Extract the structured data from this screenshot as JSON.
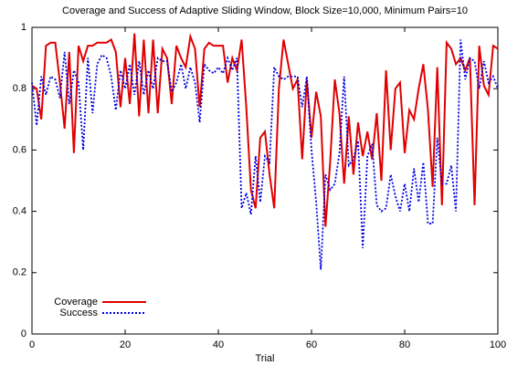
{
  "chart_data": {
    "type": "line",
    "title": "Coverage and Success of Adaptive Sliding Window, Block Size=10,000, Minimum Pairs=10",
    "xlabel": "Trial",
    "x": [
      0,
      1,
      2,
      3,
      4,
      5,
      6,
      7,
      8,
      9,
      10,
      11,
      12,
      13,
      14,
      15,
      16,
      17,
      18,
      19,
      20,
      21,
      22,
      23,
      24,
      25,
      26,
      27,
      28,
      29,
      30,
      31,
      32,
      33,
      34,
      35,
      36,
      37,
      38,
      39,
      40,
      41,
      42,
      43,
      44,
      45,
      46,
      47,
      48,
      49,
      50,
      51,
      52,
      53,
      54,
      55,
      56,
      57,
      58,
      59,
      60,
      61,
      62,
      63,
      64,
      65,
      66,
      67,
      68,
      69,
      70,
      71,
      72,
      73,
      74,
      75,
      76,
      77,
      78,
      79,
      80,
      81,
      82,
      83,
      84,
      85,
      86,
      87,
      88,
      89,
      90,
      91,
      92,
      93,
      94,
      95,
      96,
      97,
      98,
      99,
      100
    ],
    "series": [
      {
        "name": "Coverage",
        "color": "#e00000",
        "dash": "solid",
        "values": [
          0.81,
          0.8,
          0.7,
          0.94,
          0.95,
          0.95,
          0.82,
          0.67,
          0.92,
          0.59,
          0.94,
          0.89,
          0.94,
          0.94,
          0.95,
          0.95,
          0.95,
          0.96,
          0.92,
          0.74,
          0.9,
          0.75,
          0.98,
          0.71,
          0.96,
          0.72,
          0.96,
          0.72,
          0.93,
          0.9,
          0.75,
          0.94,
          0.9,
          0.87,
          0.97,
          0.93,
          0.74,
          0.93,
          0.95,
          0.94,
          0.94,
          0.94,
          0.82,
          0.9,
          0.86,
          0.96,
          0.74,
          0.47,
          0.41,
          0.64,
          0.66,
          0.52,
          0.41,
          0.8,
          0.96,
          0.88,
          0.8,
          0.83,
          0.57,
          0.83,
          0.64,
          0.79,
          0.71,
          0.35,
          0.56,
          0.83,
          0.72,
          0.49,
          0.71,
          0.52,
          0.69,
          0.58,
          0.66,
          0.57,
          0.72,
          0.5,
          0.86,
          0.6,
          0.8,
          0.82,
          0.59,
          0.73,
          0.7,
          0.8,
          0.88,
          0.73,
          0.48,
          0.87,
          0.42,
          0.95,
          0.93,
          0.88,
          0.9,
          0.86,
          0.9,
          0.42,
          0.94,
          0.81,
          0.78,
          0.94,
          0.93
        ]
      },
      {
        "name": "Success",
        "color": "#0000e0",
        "dash": "dotted",
        "values": [
          0.82,
          0.68,
          0.84,
          0.78,
          0.84,
          0.83,
          0.77,
          0.92,
          0.75,
          0.86,
          0.82,
          0.6,
          0.9,
          0.72,
          0.88,
          0.91,
          0.9,
          0.84,
          0.73,
          0.86,
          0.8,
          0.88,
          0.78,
          0.89,
          0.78,
          0.86,
          0.8,
          0.9,
          0.89,
          0.89,
          0.79,
          0.82,
          0.88,
          0.8,
          0.87,
          0.82,
          0.69,
          0.88,
          0.86,
          0.85,
          0.87,
          0.85,
          0.9,
          0.86,
          0.9,
          0.41,
          0.46,
          0.39,
          0.58,
          0.43,
          0.58,
          0.56,
          0.87,
          0.84,
          0.83,
          0.84,
          0.84,
          0.84,
          0.74,
          0.84,
          0.6,
          0.43,
          0.21,
          0.52,
          0.47,
          0.49,
          0.59,
          0.84,
          0.55,
          0.57,
          0.63,
          0.28,
          0.58,
          0.62,
          0.42,
          0.4,
          0.41,
          0.52,
          0.45,
          0.4,
          0.49,
          0.4,
          0.54,
          0.43,
          0.56,
          0.36,
          0.36,
          0.64,
          0.49,
          0.49,
          0.55,
          0.4,
          0.96,
          0.83,
          0.9,
          0.89,
          0.8,
          0.89,
          0.82,
          0.84,
          0.8
        ]
      }
    ],
    "xlim": [
      0,
      100
    ],
    "xticks": [
      0,
      20,
      40,
      60,
      80,
      100
    ],
    "ylim": [
      0,
      1
    ],
    "yticks": [
      0,
      0.2,
      0.4,
      0.6,
      0.8,
      1
    ],
    "grid": false,
    "legend": "lower left"
  }
}
